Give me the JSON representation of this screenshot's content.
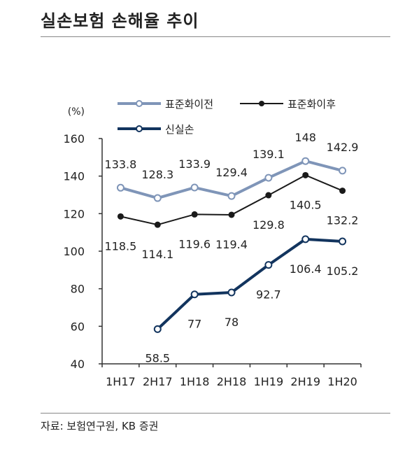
{
  "header": {
    "title": "실손보험 손해율 추이"
  },
  "footer": {
    "source": "자료: 보험연구원, KB 증권"
  },
  "chart_data": {
    "type": "line",
    "title": "실손보험 손해율 추이",
    "ylabel": "(%)",
    "xlabel": "",
    "categories": [
      "1H17",
      "2H17",
      "1H18",
      "2H18",
      "1H19",
      "2H19",
      "1H20"
    ],
    "ylim": [
      40,
      160
    ],
    "yticks": [
      40,
      60,
      80,
      100,
      120,
      140,
      160
    ],
    "grid": false,
    "legend_position": "top",
    "series": [
      {
        "name": "표준화이전",
        "values": [
          133.8,
          128.3,
          133.9,
          129.4,
          139.1,
          148,
          142.9
        ],
        "labels": [
          "133.8",
          "128.3",
          "133.9",
          "129.4",
          "139.1",
          "148",
          "142.9"
        ],
        "color": "#7f95b8",
        "label_side": "above"
      },
      {
        "name": "표준화이후",
        "values": [
          118.5,
          114.1,
          119.6,
          119.4,
          129.8,
          140.5,
          132.2
        ],
        "labels": [
          "118.5",
          "114.1",
          "119.6",
          "119.4",
          "129.8",
          "140.5",
          "132.2"
        ],
        "color": "#1a1a1a",
        "label_side": "below"
      },
      {
        "name": "신실손",
        "values": [
          null,
          58.5,
          77,
          78,
          92.7,
          106.4,
          105.2
        ],
        "labels": [
          null,
          "58.5",
          "77",
          "78",
          "92.7",
          "106.4",
          "105.2"
        ],
        "color": "#12345e",
        "label_side": "below"
      }
    ]
  }
}
